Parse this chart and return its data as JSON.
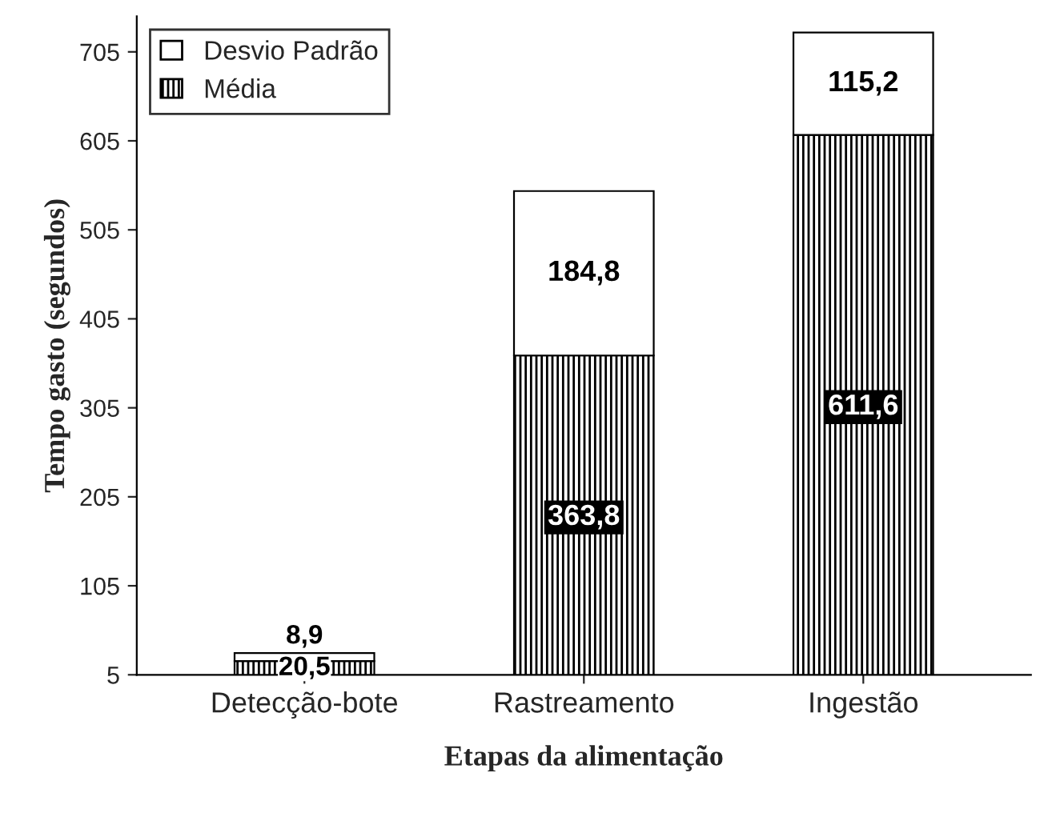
{
  "chart_data": {
    "type": "bar",
    "stacked": true,
    "xlabel": "Etapas da alimentação",
    "ylabel": "Tempo gasto (segundos)",
    "categories": [
      "Detecção-bote",
      "Rastreamento",
      "Ingestão"
    ],
    "series": [
      {
        "name": "Média",
        "color": "#000000",
        "values": [
          20.5,
          363.8,
          611.6
        ],
        "value_labels": [
          "20,5",
          "363,8",
          "611,6"
        ]
      },
      {
        "name": "Desvio Padrão",
        "color": "#ffffff",
        "values": [
          8.9,
          184.8,
          115.2
        ],
        "value_labels": [
          "8,9",
          "184,8",
          "115,2"
        ]
      }
    ],
    "ylim": [
      5,
      745
    ],
    "yticks": [
      5,
      105,
      205,
      305,
      405,
      505,
      605,
      705
    ],
    "grid": false,
    "legend": "top left"
  }
}
